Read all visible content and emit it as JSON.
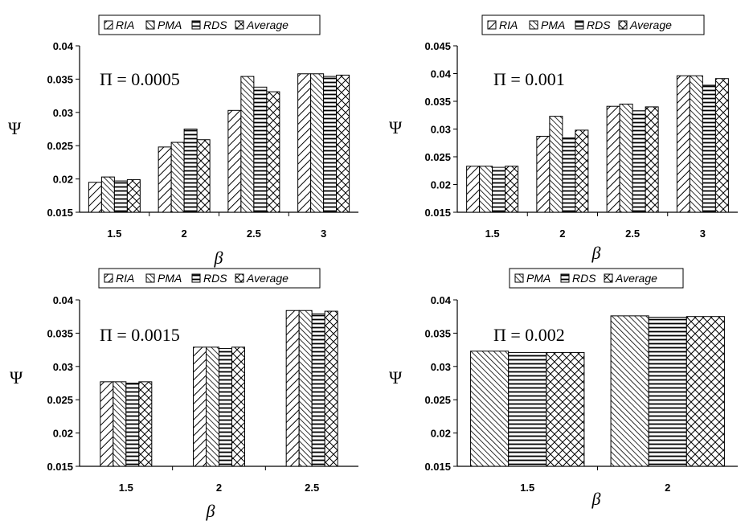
{
  "figure_title": "",
  "colors": {
    "fill": "#ffffff",
    "stroke": "#000000",
    "grid": "none"
  },
  "pattern_map": {
    "RIA": "diagonal-forward-hatch",
    "PMA": "diagonal-back-hatch-dense",
    "RDS": "horizontal-stripes",
    "Average": "cross-hatch"
  },
  "chart_data": [
    {
      "type": "bar",
      "annotation": "Π = 0.0005",
      "xlabel": "β",
      "ylabel": "Ψ",
      "ylim": [
        0.015,
        0.04
      ],
      "yticks": [
        "0.015",
        "0.02",
        "0.025",
        "0.03",
        "0.035",
        "0.04"
      ],
      "legend_position": "top",
      "grid": false,
      "categories": [
        "1.5",
        "2",
        "2.5",
        "3"
      ],
      "series": [
        {
          "name": "RIA",
          "values": [
            0.0195,
            0.0248,
            0.0303,
            0.0358
          ]
        },
        {
          "name": "PMA",
          "values": [
            0.0203,
            0.0255,
            0.0354,
            0.0358
          ]
        },
        {
          "name": "RDS",
          "values": [
            0.0197,
            0.0275,
            0.0338,
            0.0354
          ]
        },
        {
          "name": "Average",
          "values": [
            0.0199,
            0.0259,
            0.0331,
            0.0356
          ]
        }
      ]
    },
    {
      "type": "bar",
      "annotation": "Π = 0.001",
      "xlabel": "β",
      "ylabel": "Ψ",
      "ylim": [
        0.015,
        0.045
      ],
      "yticks": [
        "0.015",
        "0.02",
        "0.025",
        "0.03",
        "0.035",
        "0.04",
        "0.045"
      ],
      "legend_position": "top",
      "grid": false,
      "categories": [
        "1.5",
        "2",
        "2.5",
        "3"
      ],
      "series": [
        {
          "name": "RIA",
          "values": [
            0.0233,
            0.0287,
            0.0341,
            0.0396
          ]
        },
        {
          "name": "PMA",
          "values": [
            0.0233,
            0.0323,
            0.0345,
            0.0396
          ]
        },
        {
          "name": "RDS",
          "values": [
            0.0231,
            0.0284,
            0.0333,
            0.0379
          ]
        },
        {
          "name": "Average",
          "values": [
            0.0233,
            0.0298,
            0.034,
            0.0391
          ]
        }
      ]
    },
    {
      "type": "bar",
      "annotation": "Π = 0.0015",
      "xlabel": "β",
      "ylabel": "Ψ",
      "ylim": [
        0.015,
        0.04
      ],
      "yticks": [
        "0.015",
        "0.02",
        "0.025",
        "0.03",
        "0.035",
        "0.04"
      ],
      "legend_position": "top",
      "grid": false,
      "categories": [
        "1.5",
        "2",
        "2.5"
      ],
      "series": [
        {
          "name": "RIA",
          "values": [
            0.0277,
            0.0329,
            0.0384
          ]
        },
        {
          "name": "PMA",
          "values": [
            0.0277,
            0.0329,
            0.0384
          ]
        },
        {
          "name": "RDS",
          "values": [
            0.0275,
            0.0327,
            0.0379
          ]
        },
        {
          "name": "Average",
          "values": [
            0.0277,
            0.0329,
            0.0383
          ]
        }
      ]
    },
    {
      "type": "bar",
      "annotation": "Π = 0.002",
      "xlabel": "β",
      "ylabel": "Ψ",
      "ylim": [
        0.015,
        0.04
      ],
      "yticks": [
        "0.015",
        "0.02",
        "0.025",
        "0.03",
        "0.035",
        "0.04"
      ],
      "legend_position": "top",
      "grid": false,
      "categories": [
        "1.5",
        "2"
      ],
      "series": [
        {
          "name": "PMA",
          "values": [
            0.0323,
            0.0376
          ]
        },
        {
          "name": "RDS",
          "values": [
            0.0321,
            0.0374
          ]
        },
        {
          "name": "Average",
          "values": [
            0.0321,
            0.0375
          ]
        }
      ]
    }
  ]
}
